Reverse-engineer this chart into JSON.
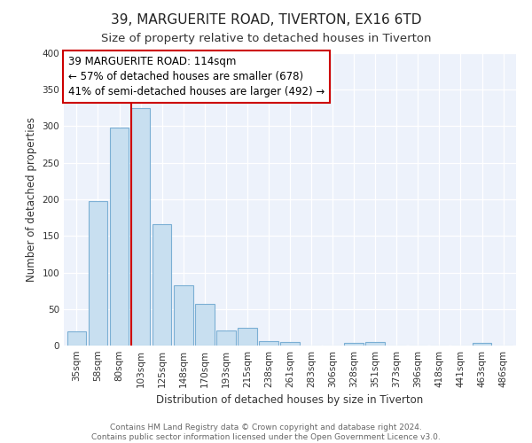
{
  "title": "39, MARGUERITE ROAD, TIVERTON, EX16 6TD",
  "subtitle": "Size of property relative to detached houses in Tiverton",
  "xlabel": "Distribution of detached houses by size in Tiverton",
  "ylabel": "Number of detached properties",
  "categories": [
    "35sqm",
    "58sqm",
    "80sqm",
    "103sqm",
    "125sqm",
    "148sqm",
    "170sqm",
    "193sqm",
    "215sqm",
    "238sqm",
    "261sqm",
    "283sqm",
    "306sqm",
    "328sqm",
    "351sqm",
    "373sqm",
    "396sqm",
    "418sqm",
    "441sqm",
    "463sqm",
    "486sqm"
  ],
  "values": [
    20,
    197,
    298,
    325,
    166,
    82,
    57,
    21,
    24,
    6,
    5,
    0,
    0,
    4,
    5,
    0,
    0,
    0,
    0,
    4,
    0
  ],
  "bar_color": "#c8dff0",
  "bar_edge_color": "#7bafd4",
  "highlight_bar_index": 3,
  "highlight_color": "#cc0000",
  "annotation_title": "39 MARGUERITE ROAD: 114sqm",
  "annotation_line1": "← 57% of detached houses are smaller (678)",
  "annotation_line2": "41% of semi-detached houses are larger (492) →",
  "annotation_box_color": "#ffffff",
  "annotation_box_edge": "#cc0000",
  "ylim": [
    0,
    400
  ],
  "yticks": [
    0,
    50,
    100,
    150,
    200,
    250,
    300,
    350,
    400
  ],
  "footer_line1": "Contains HM Land Registry data © Crown copyright and database right 2024.",
  "footer_line2": "Contains public sector information licensed under the Open Government Licence v3.0.",
  "title_fontsize": 11,
  "subtitle_fontsize": 9.5,
  "axis_label_fontsize": 8.5,
  "tick_fontsize": 7.5,
  "annotation_fontsize": 8.5,
  "footer_fontsize": 6.5,
  "bg_color": "#edf2fb"
}
